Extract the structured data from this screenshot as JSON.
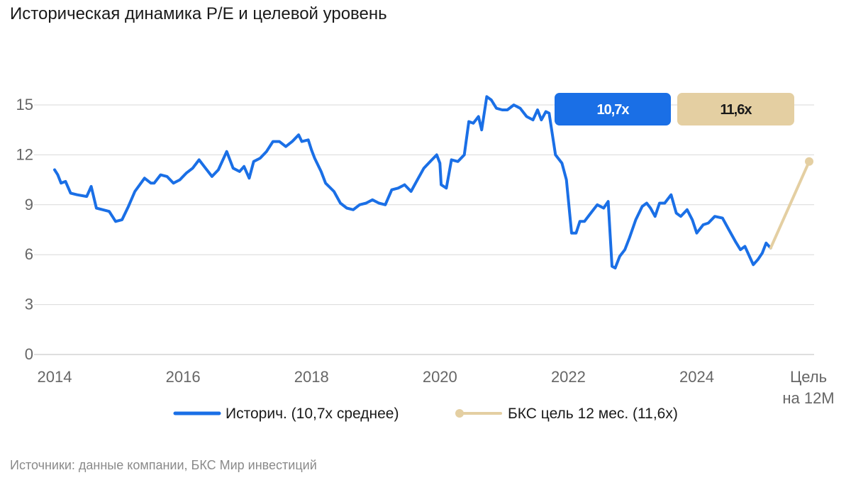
{
  "title": "Историческая динамика P/E и целевой уровень",
  "source": "Источники: данные компании, БКС Мир инвестиций",
  "colors": {
    "history": "#1A6FE6",
    "target": "#E4CFA2",
    "grid": "#d9d9d9",
    "axis_text": "#666666"
  },
  "chart_data": {
    "type": "line",
    "title": "Историческая динамика P/E и целевой уровень",
    "xlabel": "",
    "ylabel": "",
    "ylim": [
      0,
      15
    ],
    "xlim": [
      2014,
      2025.75
    ],
    "y_ticks": [
      "0",
      "3",
      "6",
      "9",
      "12",
      "15"
    ],
    "x_ticks": [
      {
        "x": 2014,
        "label": "2014"
      },
      {
        "x": 2016,
        "label": "2016"
      },
      {
        "x": 2018,
        "label": "2018"
      },
      {
        "x": 2020,
        "label": "2020"
      },
      {
        "x": 2022,
        "label": "2022"
      },
      {
        "x": 2024,
        "label": "2024"
      },
      {
        "x": 2025.75,
        "label": "Цель на 12М"
      }
    ],
    "grid": true,
    "legend_position": "bottom",
    "series": [
      {
        "name": "Историч. (10,7x среднее)",
        "color": "#1A6FE6",
        "points": [
          [
            2014.0,
            11.1
          ],
          [
            2014.05,
            10.8
          ],
          [
            2014.1,
            10.3
          ],
          [
            2014.17,
            10.4
          ],
          [
            2014.25,
            9.7
          ],
          [
            2014.35,
            9.6
          ],
          [
            2014.5,
            9.5
          ],
          [
            2014.57,
            10.1
          ],
          [
            2014.65,
            8.8
          ],
          [
            2014.75,
            8.7
          ],
          [
            2014.85,
            8.6
          ],
          [
            2014.95,
            8.0
          ],
          [
            2015.05,
            8.1
          ],
          [
            2015.15,
            8.9
          ],
          [
            2015.25,
            9.8
          ],
          [
            2015.4,
            10.6
          ],
          [
            2015.5,
            10.3
          ],
          [
            2015.55,
            10.3
          ],
          [
            2015.65,
            10.8
          ],
          [
            2015.75,
            10.7
          ],
          [
            2015.85,
            10.3
          ],
          [
            2015.95,
            10.5
          ],
          [
            2016.05,
            10.9
          ],
          [
            2016.15,
            11.2
          ],
          [
            2016.25,
            11.7
          ],
          [
            2016.35,
            11.2
          ],
          [
            2016.45,
            10.7
          ],
          [
            2016.55,
            11.1
          ],
          [
            2016.68,
            12.2
          ],
          [
            2016.78,
            11.2
          ],
          [
            2016.88,
            11.0
          ],
          [
            2016.95,
            11.3
          ],
          [
            2017.03,
            10.6
          ],
          [
            2017.1,
            11.6
          ],
          [
            2017.2,
            11.8
          ],
          [
            2017.3,
            12.2
          ],
          [
            2017.4,
            12.8
          ],
          [
            2017.5,
            12.8
          ],
          [
            2017.6,
            12.5
          ],
          [
            2017.7,
            12.8
          ],
          [
            2017.8,
            13.2
          ],
          [
            2017.85,
            12.8
          ],
          [
            2017.95,
            12.9
          ],
          [
            2018.0,
            12.3
          ],
          [
            2018.05,
            11.8
          ],
          [
            2018.15,
            11.0
          ],
          [
            2018.22,
            10.3
          ],
          [
            2018.35,
            9.8
          ],
          [
            2018.45,
            9.1
          ],
          [
            2018.55,
            8.8
          ],
          [
            2018.65,
            8.7
          ],
          [
            2018.75,
            9.0
          ],
          [
            2018.85,
            9.1
          ],
          [
            2018.95,
            9.3
          ],
          [
            2019.05,
            9.1
          ],
          [
            2019.15,
            9.0
          ],
          [
            2019.25,
            9.9
          ],
          [
            2019.35,
            10.0
          ],
          [
            2019.45,
            10.2
          ],
          [
            2019.55,
            9.8
          ],
          [
            2019.65,
            10.5
          ],
          [
            2019.75,
            11.2
          ],
          [
            2019.85,
            11.6
          ],
          [
            2019.95,
            12.0
          ],
          [
            2020.0,
            11.5
          ],
          [
            2020.02,
            10.2
          ],
          [
            2020.1,
            10.0
          ],
          [
            2020.18,
            11.7
          ],
          [
            2020.28,
            11.6
          ],
          [
            2020.38,
            12.0
          ],
          [
            2020.45,
            14.0
          ],
          [
            2020.52,
            13.9
          ],
          [
            2020.6,
            14.3
          ],
          [
            2020.65,
            13.5
          ],
          [
            2020.73,
            15.5
          ],
          [
            2020.8,
            15.3
          ],
          [
            2020.88,
            14.8
          ],
          [
            2020.97,
            14.7
          ],
          [
            2021.05,
            14.7
          ],
          [
            2021.15,
            15.0
          ],
          [
            2021.25,
            14.8
          ],
          [
            2021.35,
            14.3
          ],
          [
            2021.45,
            14.1
          ],
          [
            2021.52,
            14.7
          ],
          [
            2021.58,
            14.1
          ],
          [
            2021.65,
            14.6
          ],
          [
            2021.7,
            14.5
          ],
          [
            2021.8,
            12.0
          ],
          [
            2021.9,
            11.5
          ],
          [
            2021.97,
            10.5
          ],
          [
            2022.05,
            7.3
          ],
          [
            2022.12,
            7.3
          ],
          [
            2022.18,
            8.0
          ],
          [
            2022.25,
            8.0
          ],
          [
            2022.35,
            8.5
          ],
          [
            2022.45,
            9.0
          ],
          [
            2022.55,
            8.8
          ],
          [
            2022.62,
            9.2
          ],
          [
            2022.68,
            5.3
          ],
          [
            2022.73,
            5.2
          ],
          [
            2022.8,
            5.9
          ],
          [
            2022.88,
            6.3
          ],
          [
            2022.95,
            7.0
          ],
          [
            2023.05,
            8.1
          ],
          [
            2023.15,
            8.9
          ],
          [
            2023.22,
            9.1
          ],
          [
            2023.28,
            8.8
          ],
          [
            2023.35,
            8.3
          ],
          [
            2023.42,
            9.1
          ],
          [
            2023.5,
            9.1
          ],
          [
            2023.6,
            9.6
          ],
          [
            2023.68,
            8.5
          ],
          [
            2023.75,
            8.3
          ],
          [
            2023.85,
            8.7
          ],
          [
            2023.93,
            8.1
          ],
          [
            2024.0,
            7.3
          ],
          [
            2024.1,
            7.8
          ],
          [
            2024.18,
            7.9
          ],
          [
            2024.28,
            8.3
          ],
          [
            2024.4,
            8.2
          ],
          [
            2024.5,
            7.5
          ],
          [
            2024.6,
            6.8
          ],
          [
            2024.68,
            6.3
          ],
          [
            2024.75,
            6.5
          ],
          [
            2024.82,
            5.9
          ],
          [
            2024.88,
            5.4
          ],
          [
            2024.95,
            5.7
          ],
          [
            2025.02,
            6.1
          ],
          [
            2025.08,
            6.7
          ],
          [
            2025.15,
            6.4
          ]
        ]
      },
      {
        "name": "БКС цель 12 мес. (11,6x)",
        "color": "#E4CFA2",
        "points": [
          [
            2025.15,
            6.4
          ],
          [
            2025.75,
            11.6
          ]
        ]
      }
    ],
    "annotations": [
      {
        "label": "10,7x",
        "color": "#1A6FE6",
        "text_color": "#ffffff"
      },
      {
        "label": "11,6x",
        "color": "#E4CFA2",
        "text_color": "#1a1a1a"
      }
    ]
  }
}
